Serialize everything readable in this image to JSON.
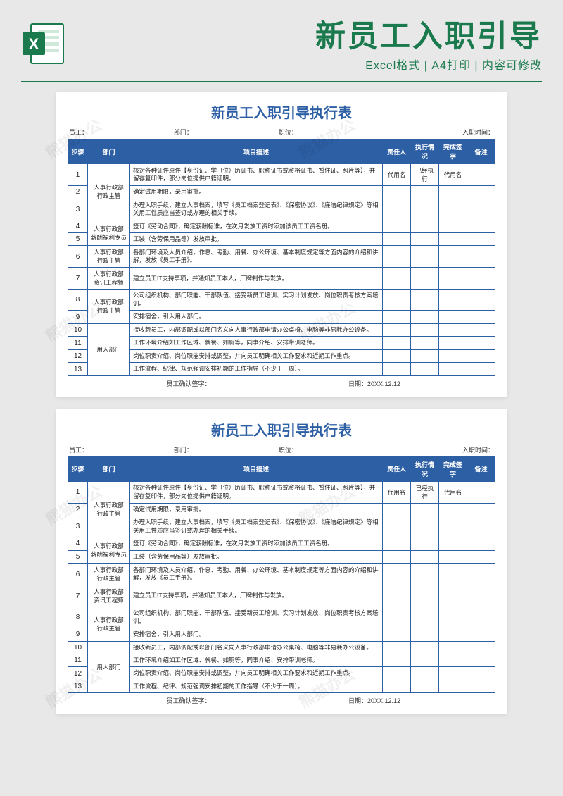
{
  "header": {
    "title": "新员工入职引导",
    "subtitle": "Excel格式 | A4打印 | 内容可修改"
  },
  "watermark_text": "熊猫办公",
  "document": {
    "title": "新员工入职引导执行表",
    "meta": {
      "employee_label": "员工：",
      "dept_label": "部门：",
      "position_label": "职位：",
      "entry_date_label": "入职时间："
    },
    "columns": {
      "step": "步骤",
      "dept": "部门",
      "desc": "项目描述",
      "owner": "责任人",
      "status": "执行情况",
      "sign": "完成签字",
      "remark": "备注"
    },
    "rows": [
      {
        "step": "1",
        "dept": "人事行政部\n行政主管",
        "dept_span": 3,
        "desc": "核对各种证件原件【身份证、学（位）历证书、职称证书或资格证书、暂住证、照片等】，并留存复印件，部分岗位提供户籍证明。",
        "owner": "代用名",
        "status": "已经执行",
        "sign": "代用名"
      },
      {
        "step": "2",
        "desc": "确定试用期限，录用审批。"
      },
      {
        "step": "3",
        "desc": "办理入职手续，建立人事档案，填写《员工档案登记表》、《保密协议》、《廉洁纪律规定》等相关用工性质应当签订或办理的相关手续。"
      },
      {
        "step": "4",
        "dept": "人事行政部\n薪酬福利专员",
        "dept_span": 2,
        "desc": "签订《劳动合同》，确定薪酬标准，在次月发放工资时添加该员工工资名册。"
      },
      {
        "step": "5",
        "desc": "工装（含劳保用品等）发放审批。"
      },
      {
        "step": "6",
        "dept": "人事行政部\n行政主管",
        "dept_span": 1,
        "desc": "各部门环境及人员介绍，作息、考勤、用餐、办公环境、基本制度规定等方面内容的介绍和讲解，发放《员工手册》。"
      },
      {
        "step": "7",
        "dept": "人事行政部\n资讯工程师",
        "dept_span": 1,
        "desc": "建立员工IT支持事项，并通知员工本人，厂牌制作与发放。"
      },
      {
        "step": "8",
        "dept": "人事行政部\n行政主管",
        "dept_span": 2,
        "desc": "公司组织机构、部门职能、干部队伍、接受新员工培训、实习计划发放、岗位职责考核方案培训。"
      },
      {
        "step": "9",
        "desc": "安排宿舍，引入用人部门。"
      },
      {
        "step": "10",
        "dept": "用人部门",
        "dept_span": 4,
        "desc": "接收新员工，内部调配或以部门名义向人事行政部申请办公桌椅、电脑等非易耗办公设备。"
      },
      {
        "step": "11",
        "desc": "工作环境介绍如工作区域、就餐、如厕等，同事介绍、安排带训老师。"
      },
      {
        "step": "12",
        "desc": "岗位职责介绍、岗位职能安排或调整，并向员工明确相关工作要求和近期工作重点。"
      },
      {
        "step": "13",
        "desc": "工作流程、纪律、规范强调安排初期的工作指导（不少于一周）。"
      }
    ],
    "footer": {
      "sign_label": "员工确认签字：",
      "date_label": "日期：20XX.12.12"
    }
  },
  "colors": {
    "brand_green": "#1a7a4d",
    "table_blue": "#2d5fa5",
    "page_bg": "#e8e8e8",
    "white": "#ffffff"
  }
}
